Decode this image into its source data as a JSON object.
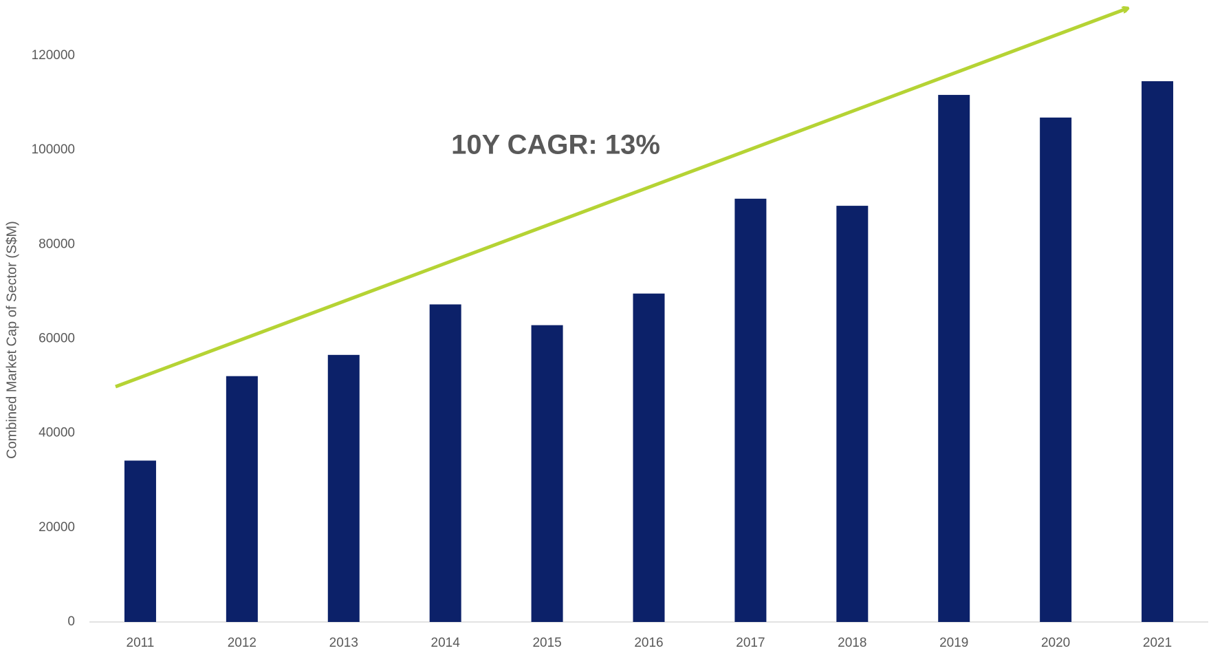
{
  "chart_data": {
    "type": "bar",
    "y_label": "Combined Market Cap of Sector (S$M)",
    "annotation": "10Y CAGR: 13%",
    "categories": [
      "2011",
      "2012",
      "2013",
      "2014",
      "2015",
      "2016",
      "2017",
      "2018",
      "2019",
      "2020",
      "2021"
    ],
    "values": [
      34200,
      52100,
      56600,
      67300,
      62900,
      69600,
      89700,
      88200,
      111700,
      106900,
      114600
    ],
    "color": "#0c2169",
    "ylim": [
      0,
      120000
    ],
    "yticks": [
      0,
      20000,
      40000,
      60000,
      80000,
      100000,
      120000
    ],
    "grid": false
  }
}
